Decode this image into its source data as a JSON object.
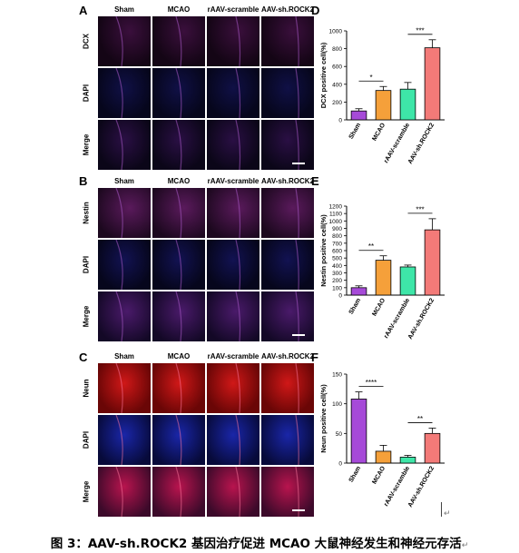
{
  "panel_letters": [
    "A",
    "B",
    "C",
    "D",
    "E",
    "F"
  ],
  "groups": [
    "Sham",
    "MCAO",
    "rAAV-scramble",
    "AAV-sh.ROCK2"
  ],
  "panel_A": {
    "rows": [
      "DCX",
      "DAPI",
      "Merge"
    ]
  },
  "panel_B": {
    "rows": [
      "Nestin",
      "DAPI",
      "Merge"
    ]
  },
  "panel_C": {
    "rows": [
      "Neun",
      "DAPI",
      "Merge"
    ]
  },
  "chart_data": [
    {
      "type": "bar",
      "panel": "D",
      "categories": [
        "Sham",
        "MCAO",
        "rAAV-scramble",
        "AAV-sh.ROCK2"
      ],
      "values": [
        100,
        330,
        345,
        810
      ],
      "errors": [
        25,
        45,
        75,
        90
      ],
      "ylabel": "DCX positive cell(%)",
      "ylim": [
        0,
        1000
      ],
      "yticks": [
        0,
        200,
        400,
        600,
        800,
        1000
      ],
      "colors": [
        "#a64ad8",
        "#f5a03a",
        "#3ee6a8",
        "#f37a78"
      ],
      "significance": [
        {
          "from": 0,
          "to": 1,
          "label": "*"
        },
        {
          "from": 2,
          "to": 3,
          "label": "***"
        }
      ]
    },
    {
      "type": "bar",
      "panel": "E",
      "categories": [
        "Sham",
        "MCAO",
        "rAAV-scramble",
        "AAV-sh.ROCK2"
      ],
      "values": [
        100,
        470,
        380,
        880
      ],
      "errors": [
        25,
        60,
        25,
        150
      ],
      "ylabel": "Nestin positive cell(%)",
      "ylim": [
        0,
        1200
      ],
      "yticks": [
        0,
        100,
        200,
        300,
        400,
        500,
        600,
        700,
        800,
        900,
        1000,
        1100,
        1200
      ],
      "colors": [
        "#a64ad8",
        "#f5a03a",
        "#3ee6a8",
        "#f37a78"
      ],
      "significance": [
        {
          "from": 0,
          "to": 1,
          "label": "**"
        },
        {
          "from": 2,
          "to": 3,
          "label": "***"
        }
      ]
    },
    {
      "type": "bar",
      "panel": "F",
      "categories": [
        "Sham",
        "MCAO",
        "rAAV-scramble",
        "AAV-sh.ROCK2"
      ],
      "values": [
        108,
        20,
        10,
        50
      ],
      "errors": [
        12,
        10,
        3,
        9
      ],
      "ylabel": "Neun positive cell(%)",
      "ylim": [
        0,
        150
      ],
      "yticks": [
        0,
        50,
        100,
        150
      ],
      "colors": [
        "#a64ad8",
        "#f5a03a",
        "#3ee6a8",
        "#f37a78"
      ],
      "significance": [
        {
          "from": 0,
          "to": 1,
          "label": "****"
        },
        {
          "from": 2,
          "to": 3,
          "label": "**"
        }
      ]
    }
  ],
  "caption": "图 3：AAV-sh.ROCK2 基因治疗促进 MCAO 大鼠神经发生和神经元存活",
  "return_glyph": "↵"
}
